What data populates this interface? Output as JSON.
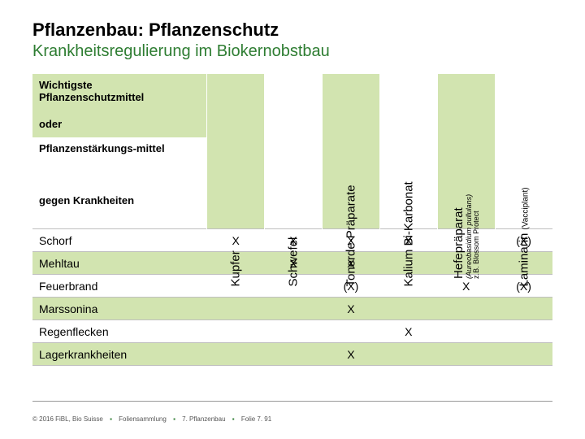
{
  "title": "Pflanzenbau: Pflanzenschutz",
  "subtitle": "Krankheitsregulierung im Biokernobstbau",
  "title_color": "#000000",
  "subtitle_color": "#2e7d32",
  "bg_green": "#d2e4b0",
  "bg_white": "#ffffff",
  "border_color": "#bfbfbf",
  "row_headers": {
    "wichtig": "Wichtigste Pflanzenschutzmittel",
    "oder": "oder",
    "pflstark": "Pflanzenstärkungs-mittel",
    "gegen": "gegen Krankheiten"
  },
  "columns": [
    {
      "label": "Kupfer",
      "sub": "",
      "sub2": ""
    },
    {
      "label": "Schwefel",
      "sub": "",
      "sub2": ""
    },
    {
      "label": "Tonerde-Präparate",
      "sub": "",
      "sub2": ""
    },
    {
      "label": "Kalium Bi-Karbonat",
      "sub": "",
      "sub2": ""
    },
    {
      "label": "Hefepräparat",
      "sub": "(Aureobasidium pullulans)",
      "sub2": "z.B. Blossom Protect"
    },
    {
      "label": "Laminarin",
      "sub": "(Vacciplant)",
      "sub2": ""
    }
  ],
  "column_band": [
    "green",
    "white",
    "green",
    "white",
    "green",
    "white"
  ],
  "rows": [
    {
      "name": "Schorf",
      "cells": [
        "X",
        "X",
        "X",
        "X",
        "",
        "(X)"
      ]
    },
    {
      "name": "Mehltau",
      "cells": [
        "",
        "X",
        "X",
        "",
        "",
        ""
      ]
    },
    {
      "name": "Feuerbrand",
      "cells": [
        "",
        "",
        "(X)",
        "",
        "X",
        "(X)"
      ]
    },
    {
      "name": "Marssonina",
      "cells": [
        "",
        "",
        "X",
        "",
        "",
        ""
      ]
    },
    {
      "name": "Regenflecken",
      "cells": [
        "",
        "",
        "",
        "X",
        "",
        ""
      ]
    },
    {
      "name": "Lagerkrankheiten",
      "cells": [
        "",
        "",
        "X",
        "",
        "",
        ""
      ]
    }
  ],
  "row_band": [
    "white",
    "green",
    "white",
    "green",
    "white",
    "green"
  ],
  "footer": {
    "copyright": "© 2016 FiBL, Bio Suisse",
    "part1": "Foliensammlung",
    "part2": "7. Pflanzenbau",
    "part3": "Folie 7. 91",
    "sep": "▪"
  }
}
